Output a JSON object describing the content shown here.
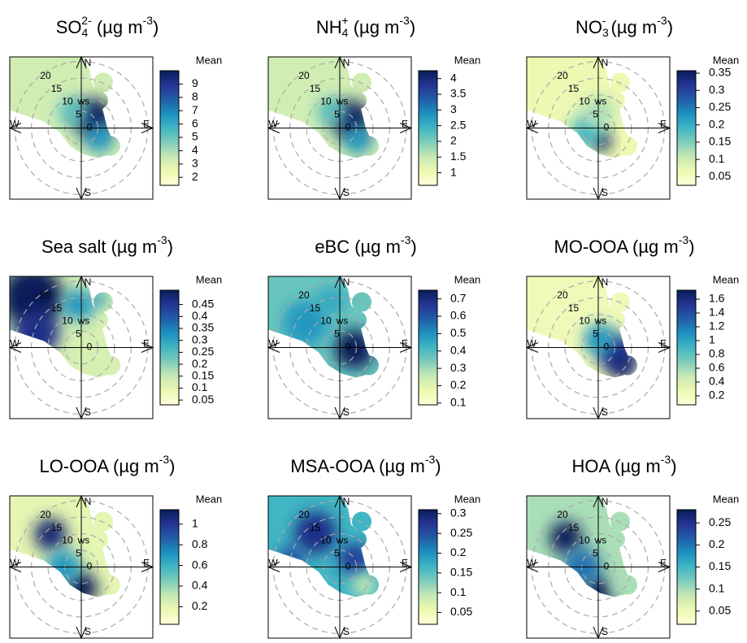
{
  "colormap": [
    "#ffffd9",
    "#edf8b1",
    "#c7e9b4",
    "#7fcdbb",
    "#41b6c4",
    "#1d91c0",
    "#225ea8",
    "#253494",
    "#081d58"
  ],
  "chart_data": [
    {
      "type": "polarplot",
      "title_parts": [
        {
          "text": "SO"
        },
        {
          "text": "4",
          "script": "sub"
        },
        {
          "text": "2-",
          "script": "sup"
        },
        {
          "text": " (µg m"
        },
        {
          "text": "-3",
          "script": "sup"
        },
        {
          "text": ")"
        }
      ],
      "rticks": [
        0,
        5,
        10,
        15,
        20
      ],
      "rlim": [
        0,
        21.5
      ],
      "r_label": "ws",
      "compass": [
        "N",
        "E",
        "S",
        "W"
      ],
      "colorbar_label": "Mean",
      "colorbar_lim": [
        1.4,
        10
      ],
      "colorbar_ticks": [
        2,
        3,
        4,
        5,
        6,
        7,
        8,
        9
      ]
    },
    {
      "type": "polarplot",
      "title_parts": [
        {
          "text": "NH"
        },
        {
          "text": "4",
          "script": "sub"
        },
        {
          "text": "+",
          "script": "sup"
        },
        {
          "text": " (µg m"
        },
        {
          "text": "-3",
          "script": "sup"
        },
        {
          "text": ")"
        }
      ],
      "rticks": [
        0,
        5,
        10,
        15,
        20
      ],
      "rlim": [
        0,
        21.5
      ],
      "r_label": "ws",
      "compass": [
        "N",
        "E",
        "S",
        "W"
      ],
      "colorbar_label": "Mean",
      "colorbar_lim": [
        0.6,
        4.25
      ],
      "colorbar_ticks": [
        1,
        1.5,
        2,
        2.5,
        3,
        3.5,
        4
      ]
    },
    {
      "type": "polarplot",
      "title_parts": [
        {
          "text": "NO"
        },
        {
          "text": "3",
          "script": "sub"
        },
        {
          "text": "-",
          "script": "sup"
        },
        {
          "text": " (µg m"
        },
        {
          "text": "-3",
          "script": "sup"
        },
        {
          "text": ")"
        }
      ],
      "rticks": [
        0,
        5,
        10,
        15,
        20
      ],
      "rlim": [
        0,
        21.5
      ],
      "r_label": "ws",
      "compass": [
        "N",
        "E",
        "S",
        "W"
      ],
      "colorbar_label": "Mean",
      "colorbar_lim": [
        0.025,
        0.357
      ],
      "colorbar_ticks": [
        0.05,
        0.1,
        0.15,
        0.2,
        0.25,
        0.3,
        0.35
      ]
    },
    {
      "type": "polarplot",
      "title_parts": [
        {
          "text": "Sea salt (µg m"
        },
        {
          "text": "-3",
          "script": "sup"
        },
        {
          "text": ")"
        }
      ],
      "rticks": [
        0,
        5,
        10,
        15,
        20
      ],
      "rlim": [
        0,
        21.5
      ],
      "r_label": "ws",
      "compass": [
        "N",
        "E",
        "S",
        "W"
      ],
      "colorbar_label": "Mean",
      "colorbar_lim": [
        0.03,
        0.51
      ],
      "colorbar_ticks": [
        0.05,
        0.1,
        0.15,
        0.2,
        0.25,
        0.3,
        0.35,
        0.4,
        0.45
      ]
    },
    {
      "type": "polarplot",
      "title_parts": [
        {
          "text": "eBC (µg m"
        },
        {
          "text": "-3",
          "script": "sup"
        },
        {
          "text": ")"
        }
      ],
      "rticks": [
        0,
        5,
        10,
        15,
        20
      ],
      "rlim": [
        0,
        21.5
      ],
      "r_label": "ws",
      "compass": [
        "N",
        "E",
        "S",
        "W"
      ],
      "colorbar_label": "Mean",
      "colorbar_lim": [
        0.09,
        0.75
      ],
      "colorbar_ticks": [
        0.1,
        0.2,
        0.3,
        0.4,
        0.5,
        0.6,
        0.7
      ]
    },
    {
      "type": "polarplot",
      "title_parts": [
        {
          "text": "MO-OOA (µg m"
        },
        {
          "text": "-3",
          "script": "sup"
        },
        {
          "text": ")"
        }
      ],
      "rticks": [
        0,
        5,
        10,
        15,
        20
      ],
      "rlim": [
        0,
        21.5
      ],
      "r_label": "ws",
      "compass": [
        "N",
        "E",
        "S",
        "W"
      ],
      "colorbar_label": "Mean",
      "colorbar_lim": [
        0.07,
        1.73
      ],
      "colorbar_ticks": [
        0.2,
        0.4,
        0.6,
        0.8,
        1,
        1.2,
        1.4,
        1.6
      ]
    },
    {
      "type": "polarplot",
      "title_parts": [
        {
          "text": "LO-OOA (µg m"
        },
        {
          "text": "-3",
          "script": "sup"
        },
        {
          "text": ")"
        }
      ],
      "rticks": [
        0,
        5,
        10,
        15,
        20
      ],
      "rlim": [
        0,
        21.5
      ],
      "r_label": "ws",
      "compass": [
        "N",
        "E",
        "S",
        "W"
      ],
      "colorbar_label": "Mean",
      "colorbar_lim": [
        0.03,
        1.14
      ],
      "colorbar_ticks": [
        0.2,
        0.4,
        0.6,
        0.8,
        1
      ]
    },
    {
      "type": "polarplot",
      "title_parts": [
        {
          "text": "MSA-OOA (µg m"
        },
        {
          "text": "-3",
          "script": "sup"
        },
        {
          "text": ")"
        }
      ],
      "rticks": [
        0,
        5,
        10,
        15,
        20
      ],
      "rlim": [
        0,
        21.5
      ],
      "r_label": "ws",
      "compass": [
        "N",
        "E",
        "S",
        "W"
      ],
      "colorbar_label": "Mean",
      "colorbar_lim": [
        0.02,
        0.31
      ],
      "colorbar_ticks": [
        0.05,
        0.1,
        0.15,
        0.2,
        0.25,
        0.3
      ]
    },
    {
      "type": "polarplot",
      "title_parts": [
        {
          "text": "HOA (µg m"
        },
        {
          "text": "-3",
          "script": "sup"
        },
        {
          "text": ")"
        }
      ],
      "rticks": [
        0,
        5,
        10,
        15,
        20
      ],
      "rlim": [
        0,
        21.5
      ],
      "r_label": "ws",
      "compass": [
        "N",
        "E",
        "S",
        "W"
      ],
      "colorbar_label": "Mean",
      "colorbar_lim": [
        0.02,
        0.28
      ],
      "colorbar_ticks": [
        0.05,
        0.1,
        0.15,
        0.2,
        0.25
      ]
    }
  ]
}
